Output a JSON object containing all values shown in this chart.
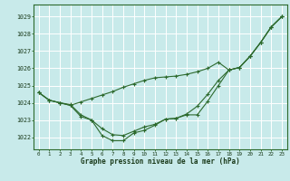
{
  "title": "Graphe pression niveau de la mer (hPa)",
  "bg_color": "#c8eaea",
  "grid_color": "#ffffff",
  "line_color": "#2d6a2d",
  "text_color": "#1a3a1a",
  "xlim": [
    -0.5,
    23.5
  ],
  "ylim": [
    1021.3,
    1029.7
  ],
  "yticks": [
    1022,
    1023,
    1024,
    1025,
    1026,
    1027,
    1028,
    1029
  ],
  "xticks": [
    0,
    1,
    2,
    3,
    4,
    5,
    6,
    7,
    8,
    9,
    10,
    11,
    12,
    13,
    14,
    15,
    16,
    17,
    18,
    19,
    20,
    21,
    22,
    23
  ],
  "series": [
    [
      1024.6,
      1024.15,
      1024.0,
      1023.85,
      1024.05,
      1024.25,
      1024.45,
      1024.65,
      1024.9,
      1025.1,
      1025.3,
      1025.45,
      1025.5,
      1025.55,
      1025.65,
      1025.8,
      1026.0,
      1026.35,
      1025.9,
      1026.05,
      1026.7,
      1027.5,
      1028.4,
      1029.0
    ],
    [
      1024.6,
      1024.15,
      1024.0,
      1023.85,
      1023.2,
      1023.0,
      1022.5,
      1022.15,
      1022.1,
      1022.35,
      1022.6,
      1022.75,
      1023.05,
      1023.1,
      1023.35,
      1023.8,
      1024.5,
      1025.3,
      1025.9,
      1026.05,
      1026.7,
      1027.5,
      1028.4,
      1029.0
    ],
    [
      1024.6,
      1024.15,
      1024.0,
      1023.9,
      1023.3,
      1023.0,
      1022.1,
      1021.8,
      1021.8,
      1022.25,
      1022.4,
      1022.7,
      1023.05,
      1023.1,
      1023.3,
      1023.3,
      1024.1,
      1025.0,
      1025.9,
      1026.05,
      1026.7,
      1027.5,
      1028.4,
      1029.0
    ]
  ]
}
